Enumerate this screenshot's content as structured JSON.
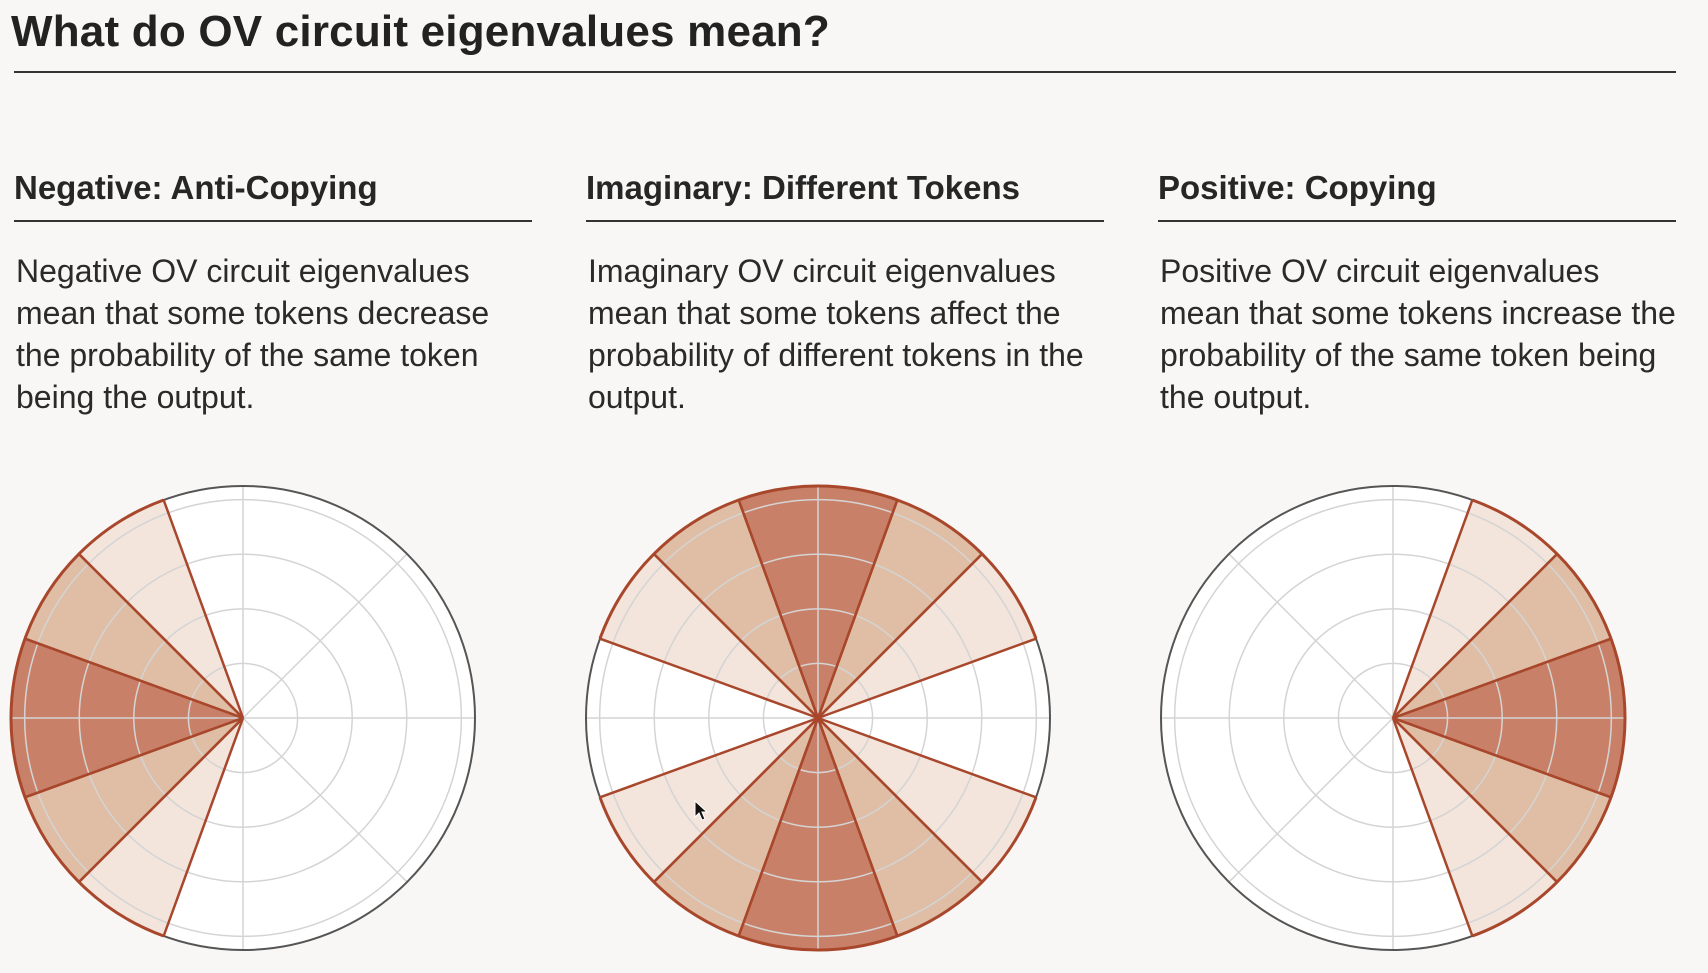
{
  "page": {
    "title": "What do OV circuit eigenvalues mean?"
  },
  "colors": {
    "background": "#f8f7f5",
    "rule": "#333333",
    "wedge_outline": "#a8472c",
    "level_0": "#ffffff",
    "level_1": "#f3e5dc",
    "level_2": "#dfbea5",
    "level_3": "#c98068",
    "grid": "#d4d4d4",
    "circle_outline": "#555555"
  },
  "sections": [
    {
      "heading": "Negative: Anti-Copying",
      "body": "Negative OV circuit eigenvalues mean that some tokens decrease the probability of the same token being the output."
    },
    {
      "heading": "Imaginary: Different Tokens",
      "body": "Imaginary OV circuit eigenvalues mean that some tokens affect the probability of different tokens in the output."
    },
    {
      "heading": "Positive: Copying",
      "body": "Positive OV circuit eigenvalues mean that some tokens increase the probability of the same token being the output."
    }
  ],
  "chart_data": [
    {
      "type": "polar-wedges",
      "sectors": 18,
      "ring_count": 4,
      "highlighted": [
        {
          "center_deg": 180,
          "width_deg": 40,
          "intensity": 3
        },
        {
          "center_deg": 147.5,
          "width_deg": 25,
          "intensity": 2
        },
        {
          "center_deg": 212.5,
          "width_deg": 25,
          "intensity": 2
        },
        {
          "center_deg": 122.5,
          "width_deg": 25,
          "intensity": 1
        },
        {
          "center_deg": 237.5,
          "width_deg": 25,
          "intensity": 1
        }
      ]
    },
    {
      "type": "polar-wedges",
      "sectors": 18,
      "ring_count": 4,
      "highlighted": [
        {
          "center_deg": 90,
          "width_deg": 40,
          "intensity": 3
        },
        {
          "center_deg": 270,
          "width_deg": 40,
          "intensity": 3
        },
        {
          "center_deg": 57.5,
          "width_deg": 25,
          "intensity": 2
        },
        {
          "center_deg": 122.5,
          "width_deg": 25,
          "intensity": 2
        },
        {
          "center_deg": 237.5,
          "width_deg": 25,
          "intensity": 2
        },
        {
          "center_deg": 302.5,
          "width_deg": 25,
          "intensity": 2
        },
        {
          "center_deg": 32.5,
          "width_deg": 25,
          "intensity": 1
        },
        {
          "center_deg": 147.5,
          "width_deg": 25,
          "intensity": 1
        },
        {
          "center_deg": 212.5,
          "width_deg": 25,
          "intensity": 1
        },
        {
          "center_deg": 327.5,
          "width_deg": 25,
          "intensity": 1
        }
      ]
    },
    {
      "type": "polar-wedges",
      "sectors": 18,
      "ring_count": 4,
      "highlighted": [
        {
          "center_deg": 0,
          "width_deg": 40,
          "intensity": 3
        },
        {
          "center_deg": 32.5,
          "width_deg": 25,
          "intensity": 2
        },
        {
          "center_deg": 327.5,
          "width_deg": 25,
          "intensity": 2
        },
        {
          "center_deg": 57.5,
          "width_deg": 25,
          "intensity": 1
        },
        {
          "center_deg": 302.5,
          "width_deg": 25,
          "intensity": 1
        }
      ]
    }
  ]
}
